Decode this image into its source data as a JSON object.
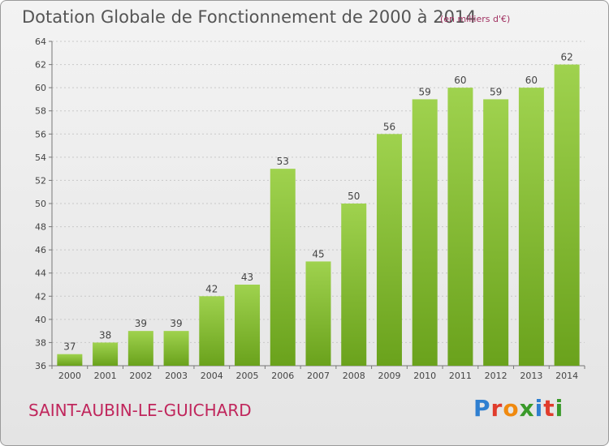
{
  "header": {
    "title": "Dotation Globale de Fonctionnement de 2000 à 2014",
    "unit": "(en milliers d'€)"
  },
  "footer": {
    "commune": "SAINT-AUBIN-LE-GUICHARD",
    "brand": "Proxiti",
    "brand_colors": [
      "#2f7fd0",
      "#e03c2c",
      "#f08a10",
      "#3a9a2a",
      "#2f7fd0",
      "#e03c2c",
      "#3a9a2a"
    ]
  },
  "colors": {
    "bar_light": "#9fd24e",
    "bar_dark": "#6aa21c",
    "axis": "#777777",
    "grid": "#c8c8c8",
    "label": "#444444"
  },
  "chart_data": {
    "type": "bar",
    "categories": [
      "2000",
      "2001",
      "2002",
      "2003",
      "2004",
      "2005",
      "2006",
      "2007",
      "2008",
      "2009",
      "2010",
      "2011",
      "2012",
      "2013",
      "2014"
    ],
    "values": [
      37,
      38,
      39,
      39,
      42,
      43,
      53,
      45,
      50,
      56,
      59,
      60,
      59,
      60,
      62
    ],
    "yticks": [
      36,
      38,
      40,
      42,
      44,
      46,
      48,
      50,
      52,
      54,
      56,
      58,
      60,
      62,
      64
    ],
    "ylim": [
      36,
      64
    ],
    "title": "Dotation Globale de Fonctionnement de 2000 à 2014",
    "xlabel": "",
    "ylabel": "",
    "grid": true
  }
}
